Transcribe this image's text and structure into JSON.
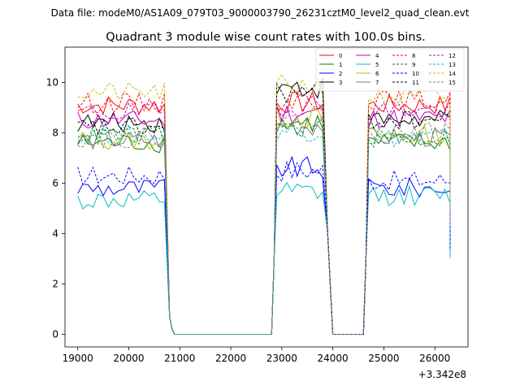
{
  "header": {
    "filename": "Data file: modeM0/AS1A09_079T03_9000003790_26231cztM0_level2_quad_clean.evt"
  },
  "chart_data": {
    "type": "line",
    "title": "Quadrant 3 module wise count rates with 100.0s bins.",
    "xlabel": "",
    "ylabel": "",
    "x_offset_label": "+3.342e8",
    "xlim": [
      18750,
      26650
    ],
    "ylim": [
      -0.5,
      11.4
    ],
    "xticks": [
      19000,
      20000,
      21000,
      22000,
      23000,
      24000,
      25000,
      26000
    ],
    "yticks": [
      0,
      2,
      4,
      6,
      8,
      10
    ],
    "segments": [
      {
        "start": 19000,
        "end": 20700,
        "drop_to": 0.3
      },
      {
        "start": 22900,
        "end": 23800,
        "rise_from": 0.3
      },
      {
        "start": 24700,
        "end": 26300,
        "rise_from": 0.3
      }
    ],
    "gaps": [
      [
        20900,
        22800
      ],
      [
        24000,
        24600
      ]
    ],
    "series": [
      {
        "name": "0",
        "color": "#ff0000",
        "dash": "solid",
        "levels": [
          9.1,
          9.2,
          9.1
        ]
      },
      {
        "name": "1",
        "color": "#008000",
        "dash": "solid",
        "levels": [
          7.6,
          8.4,
          7.6
        ]
      },
      {
        "name": "2",
        "color": "#0000ff",
        "dash": "solid",
        "levels": [
          5.8,
          6.6,
          5.8
        ]
      },
      {
        "name": "3",
        "color": "#000000",
        "dash": "solid",
        "levels": [
          8.4,
          9.8,
          8.5
        ]
      },
      {
        "name": "4",
        "color": "#bf00bf",
        "dash": "solid",
        "levels": [
          8.5,
          8.8,
          8.6
        ]
      },
      {
        "name": "5",
        "color": "#00bfbf",
        "dash": "solid",
        "levels": [
          5.3,
          5.6,
          5.5
        ]
      },
      {
        "name": "6",
        "color": "#bfbf00",
        "dash": "solid",
        "levels": [
          7.7,
          8.6,
          7.9
        ]
      },
      {
        "name": "7",
        "color": "#7f7f7f",
        "dash": "solid",
        "levels": [
          7.7,
          8.3,
          7.8
        ]
      },
      {
        "name": "8",
        "color": "#ff0000",
        "dash": "dashed",
        "levels": [
          9.2,
          9.3,
          9.3
        ]
      },
      {
        "name": "9",
        "color": "#008000",
        "dash": "dashed",
        "levels": [
          7.9,
          8.2,
          7.8
        ]
      },
      {
        "name": "10",
        "color": "#0000ff",
        "dash": "dashed",
        "levels": [
          6.3,
          6.5,
          6.1
        ]
      },
      {
        "name": "11",
        "color": "#000000",
        "dash": "dashed",
        "levels": [
          8.2,
          9.6,
          8.5
        ]
      },
      {
        "name": "12",
        "color": "#bf00bf",
        "dash": "dashed",
        "levels": [
          8.8,
          9.1,
          8.9
        ]
      },
      {
        "name": "13",
        "color": "#00bfbf",
        "dash": "dashed",
        "levels": [
          7.9,
          8.1,
          7.8
        ]
      },
      {
        "name": "14",
        "color": "#bfbf00",
        "dash": "dashed",
        "levels": [
          9.6,
          9.9,
          9.4
        ]
      },
      {
        "name": "15",
        "color": "#7f7f7f",
        "dash": "dashed",
        "levels": [
          7.8,
          8.4,
          8.0
        ]
      }
    ]
  }
}
